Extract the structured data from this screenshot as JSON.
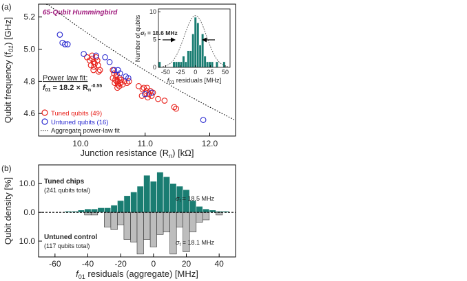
{
  "chart_data": [
    {
      "panel_label": "(a)",
      "type": "scatter",
      "title": "65-Qubit Hummingbird",
      "xlabel": "Junction resistance (R",
      "xlabel_sub": "n",
      "xlabel_tail": ") [kΩ]",
      "ylabel": "Qubit frequency (f",
      "ylabel_sub": "01",
      "ylabel_tail": ") [GHz]",
      "xlim": [
        9.35,
        12.4
      ],
      "ylim": [
        4.46,
        5.28
      ],
      "xticks": [
        "10.0",
        "11.0",
        "12.0"
      ],
      "xtick_values": [
        10,
        11,
        12
      ],
      "yticks": [
        "4.6",
        "4.8",
        "5.0",
        "5.2"
      ],
      "ytick_values": [
        4.6,
        4.8,
        5.0,
        5.2
      ],
      "fit_text": {
        "line1": "Power law fit:",
        "prefix": "f",
        "prefix_sub": "01",
        "mid": " = 18.2 × R",
        "var_sub": "n",
        "exponent": "-0.55"
      },
      "fit": {
        "a": 18.2,
        "b": -0.55,
        "x_range": [
          9.35,
          12.4
        ]
      },
      "legend": [
        {
          "label": "Tuned qubits (49)",
          "marker": "circle",
          "color": "#e8201a"
        },
        {
          "label": "Untuned qubits (16)",
          "marker": "circle",
          "color": "#2a2ad0"
        },
        {
          "label": "Aggregate power-law fit",
          "marker": "dotted-line",
          "color": "#000000"
        }
      ],
      "series": [
        {
          "name": "Tuned qubits (49)",
          "color": "#e8201a",
          "points": [
            [
              10.1,
              4.95
            ],
            [
              10.14,
              4.93
            ],
            [
              10.18,
              4.96
            ],
            [
              10.2,
              4.92
            ],
            [
              10.22,
              4.91
            ],
            [
              10.24,
              4.95
            ],
            [
              10.16,
              4.9
            ],
            [
              10.26,
              4.93
            ],
            [
              10.21,
              4.89
            ],
            [
              10.27,
              4.9
            ],
            [
              10.2,
              4.87
            ],
            [
              10.28,
              4.86
            ],
            [
              10.3,
              4.87
            ],
            [
              10.5,
              4.87
            ],
            [
              10.52,
              4.85
            ],
            [
              10.55,
              4.83
            ],
            [
              10.56,
              4.8
            ],
            [
              10.58,
              4.78
            ],
            [
              10.6,
              4.77
            ],
            [
              10.53,
              4.79
            ],
            [
              10.57,
              4.76
            ],
            [
              10.62,
              4.79
            ],
            [
              10.5,
              4.82
            ],
            [
              10.54,
              4.81
            ],
            [
              10.58,
              4.8
            ],
            [
              10.6,
              4.82
            ],
            [
              10.56,
              4.84
            ],
            [
              10.63,
              4.81
            ],
            [
              10.68,
              4.8
            ],
            [
              10.72,
              4.79
            ],
            [
              10.65,
              4.78
            ],
            [
              10.75,
              4.8
            ],
            [
              10.9,
              4.77
            ],
            [
              10.98,
              4.76
            ],
            [
              11.0,
              4.72
            ],
            [
              11.02,
              4.74
            ],
            [
              10.96,
              4.75
            ],
            [
              11.04,
              4.7
            ],
            [
              11.06,
              4.72
            ],
            [
              11.08,
              4.74
            ],
            [
              11.12,
              4.73
            ],
            [
              10.95,
              4.71
            ],
            [
              11.03,
              4.76
            ],
            [
              11.1,
              4.71
            ],
            [
              11.2,
              4.69
            ],
            [
              11.3,
              4.68
            ],
            [
              11.45,
              4.64
            ],
            [
              11.48,
              4.63
            ],
            [
              10.18,
              4.94
            ]
          ]
        },
        {
          "name": "Untuned qubits (16)",
          "color": "#2a2ad0",
          "points": [
            [
              9.68,
              5.09
            ],
            [
              9.72,
              5.04
            ],
            [
              9.76,
              5.03
            ],
            [
              9.8,
              5.03
            ],
            [
              10.05,
              4.97
            ],
            [
              10.24,
              4.96
            ],
            [
              10.38,
              4.95
            ],
            [
              10.45,
              4.92
            ],
            [
              10.52,
              4.87
            ],
            [
              10.58,
              4.87
            ],
            [
              10.61,
              4.85
            ],
            [
              10.7,
              4.83
            ],
            [
              10.74,
              4.82
            ],
            [
              11.0,
              4.72
            ],
            [
              11.1,
              4.73
            ],
            [
              11.9,
              4.56
            ]
          ]
        }
      ],
      "inset": {
        "type": "bar",
        "xlabel": "f",
        "xlabel_sub": "01",
        "xlabel_tail": " residuals [MHz]",
        "ylabel": "Number of qubits",
        "xticks": [
          "-50",
          "-25",
          "0",
          "25",
          "50"
        ],
        "xtick_values": [
          -50,
          -25,
          0,
          25,
          50
        ],
        "yticks": [
          "0",
          "5",
          "10"
        ],
        "ytick_values": [
          0,
          5,
          10
        ],
        "xlim": [
          -62,
          58
        ],
        "ylim": [
          0,
          10.5
        ],
        "bin_width": 4,
        "bins": [
          [
            -62,
            1
          ],
          [
            -58,
            0
          ],
          [
            -54,
            0
          ],
          [
            -50,
            0
          ],
          [
            -46,
            0
          ],
          [
            -42,
            0
          ],
          [
            -38,
            1
          ],
          [
            -34,
            1
          ],
          [
            -30,
            1
          ],
          [
            -26,
            1
          ],
          [
            -22,
            2
          ],
          [
            -18,
            1
          ],
          [
            -14,
            3
          ],
          [
            -10,
            3
          ],
          [
            -6,
            6
          ],
          [
            -2,
            9
          ],
          [
            2,
            8
          ],
          [
            6,
            4
          ],
          [
            10,
            6
          ],
          [
            14,
            2
          ],
          [
            18,
            1
          ],
          [
            22,
            1
          ],
          [
            26,
            1
          ],
          [
            30,
            0
          ],
          [
            34,
            1
          ],
          [
            38,
            0
          ],
          [
            42,
            0
          ],
          [
            46,
            1
          ]
        ],
        "sigma_label": "σ",
        "sigma_sub": "f",
        "sigma_value": " = 18.6 MHz",
        "sigma_mhz": 18.6,
        "fit_color": "#555555"
      }
    },
    {
      "panel_label": "(b)",
      "type": "bar",
      "xlabel": "f",
      "xlabel_sub": "01",
      "xlabel_tail": " residuals (aggregate) [MHz]",
      "ylabel": "Qubit density [%]",
      "xlim": [
        -70,
        50
      ],
      "ylim": [
        -15.5,
        16.5
      ],
      "xticks": [
        "-60",
        "-40",
        "-20",
        "0",
        "20",
        "40"
      ],
      "xtick_values": [
        -60,
        -40,
        -20,
        0,
        20,
        40
      ],
      "yticks": [
        "10.0",
        "0.0",
        "10.0"
      ],
      "ytick_values": [
        10,
        0,
        -10
      ],
      "bin_width": 4,
      "series": [
        {
          "name": "Tuned chips",
          "subtitle": "(241 qubits total)",
          "color": "#1a7d72",
          "sigma_label": "σ",
          "sigma_sub": "f",
          "sigma_value": " = 18.5 MHz",
          "bins": [
            [
              -54,
              0.4
            ],
            [
              -50,
              0.4
            ],
            [
              -46,
              0.8
            ],
            [
              -42,
              1.2
            ],
            [
              -38,
              1.2
            ],
            [
              -34,
              1.6
            ],
            [
              -30,
              1.6
            ],
            [
              -26,
              2.5
            ],
            [
              -22,
              4.1
            ],
            [
              -18,
              5.8
            ],
            [
              -14,
              7.1
            ],
            [
              -10,
              9.1
            ],
            [
              -6,
              12.9
            ],
            [
              -2,
              10.8
            ],
            [
              2,
              14.0
            ],
            [
              6,
              12.4
            ],
            [
              10,
              10.0
            ],
            [
              14,
              9.1
            ],
            [
              18,
              7.9
            ],
            [
              22,
              4.1
            ],
            [
              26,
              2.1
            ],
            [
              30,
              1.2
            ],
            [
              34,
              0.8
            ],
            [
              38,
              0.4
            ],
            [
              42,
              0.4
            ]
          ]
        },
        {
          "name": "Untuned control",
          "subtitle": "(117 qubits total)",
          "color": "#bdbdbd",
          "sigma_label": "σ",
          "sigma_sub": "f",
          "sigma_value": " = 18.1 MHz",
          "bins": [
            [
              -42,
              0.9
            ],
            [
              -38,
              0.9
            ],
            [
              -30,
              5.1
            ],
            [
              -26,
              6.0
            ],
            [
              -22,
              4.3
            ],
            [
              -18,
              9.4
            ],
            [
              -14,
              10.3
            ],
            [
              -10,
              14.5
            ],
            [
              -6,
              9.4
            ],
            [
              -2,
              12.0
            ],
            [
              2,
              7.7
            ],
            [
              6,
              6.8
            ],
            [
              10,
              14.5
            ],
            [
              14,
              5.1
            ],
            [
              18,
              13.7
            ],
            [
              22,
              6.8
            ],
            [
              26,
              3.4
            ],
            [
              30,
              2.6
            ],
            [
              38,
              0.9
            ]
          ]
        }
      ]
    }
  ]
}
